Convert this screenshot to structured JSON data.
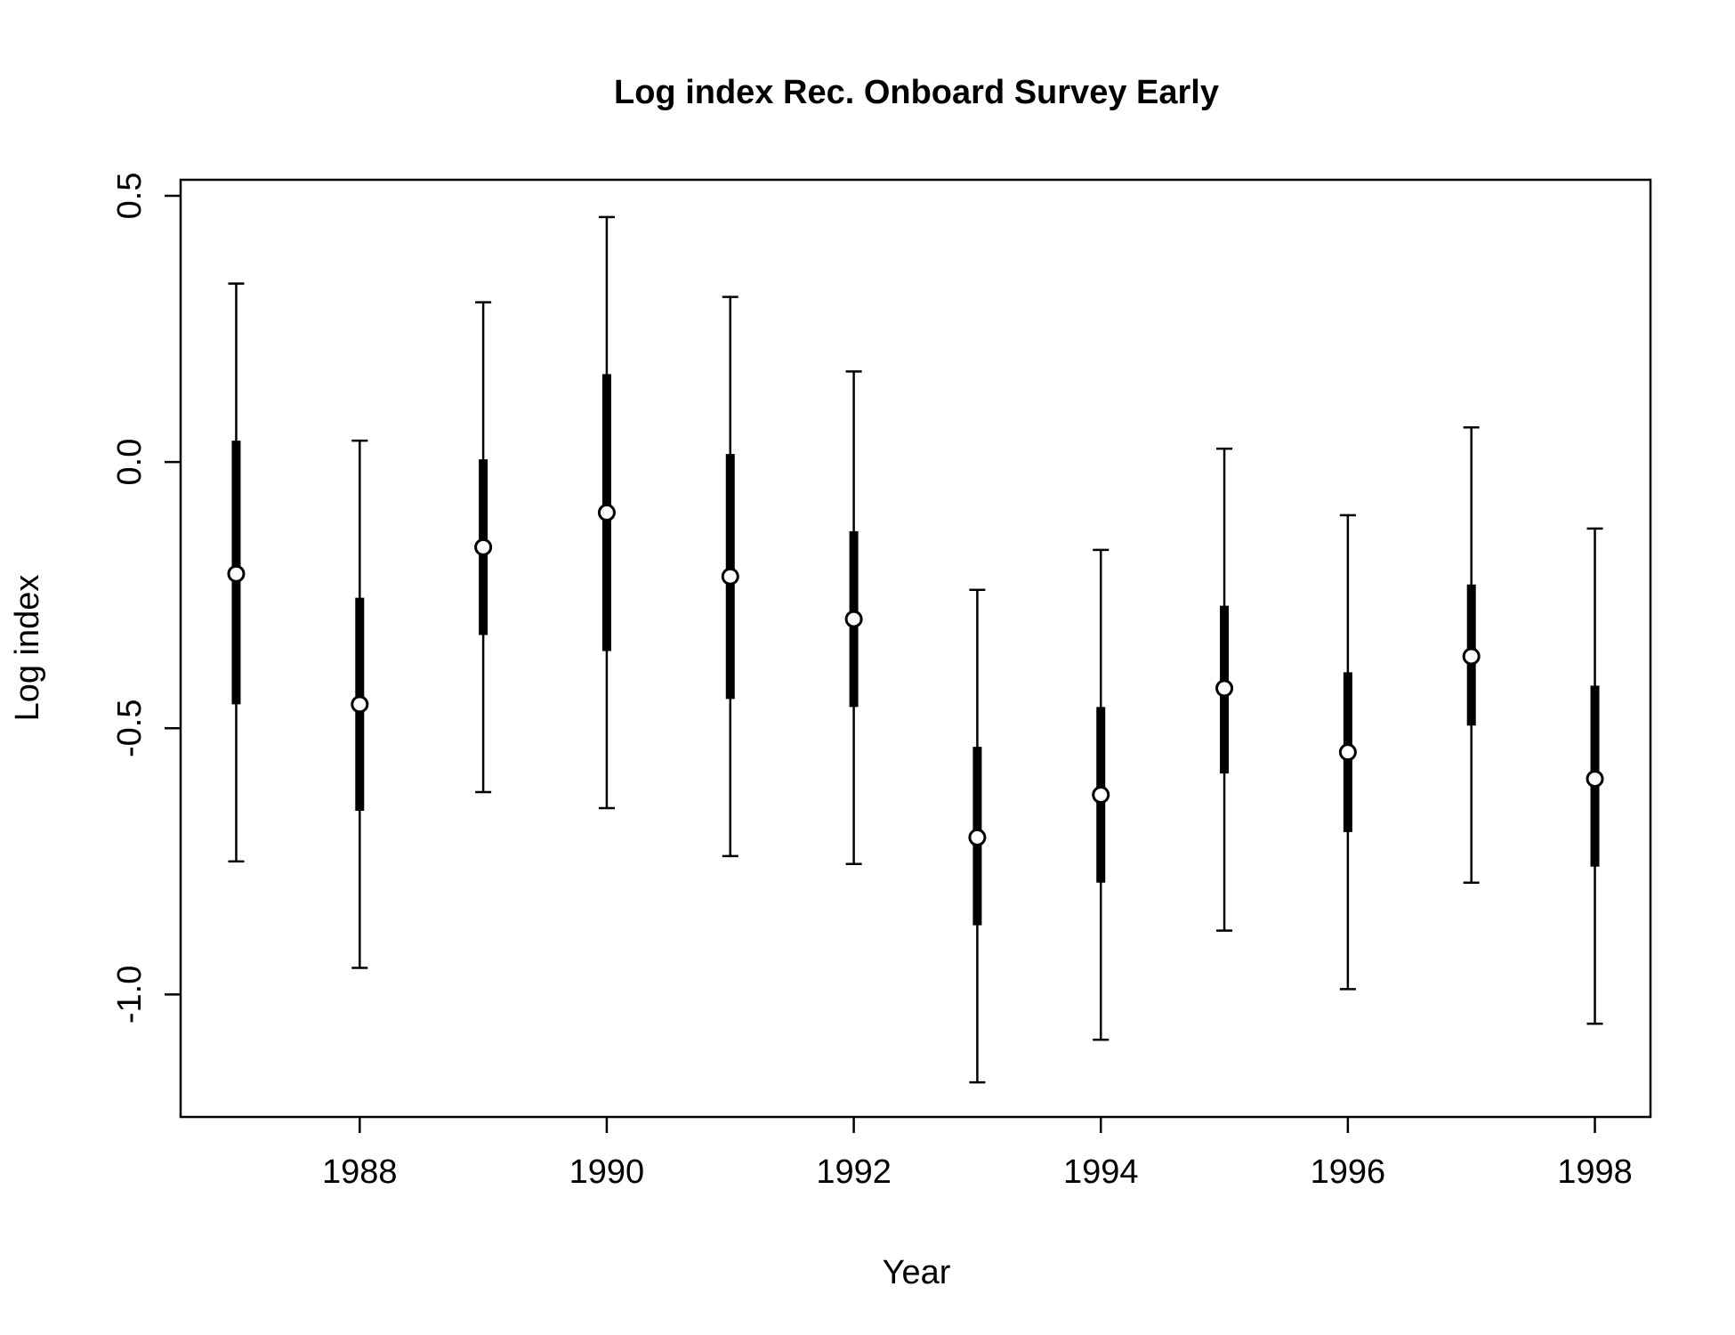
{
  "chart_data": {
    "type": "errorbar",
    "title": "Log index Rec. Onboard Survey Early",
    "xlabel": "Year",
    "ylabel": "Log index",
    "x_ticks": [
      "1988",
      "1990",
      "1992",
      "1994",
      "1996",
      "1998"
    ],
    "y_ticks": [
      "0.5",
      "0.0",
      "-0.5",
      "-1.0"
    ],
    "xlim": [
      1986.55,
      1998.45
    ],
    "ylim": [
      -1.23,
      0.53
    ],
    "grid": false,
    "points": [
      {
        "x": 1987,
        "y": -0.21,
        "lo95": -0.75,
        "hi95": 0.335,
        "lo50": -0.455,
        "hi50": 0.04
      },
      {
        "x": 1988,
        "y": -0.455,
        "lo95": -0.95,
        "hi95": 0.04,
        "lo50": -0.655,
        "hi50": -0.255
      },
      {
        "x": 1989,
        "y": -0.16,
        "lo95": -0.62,
        "hi95": 0.3,
        "lo50": -0.325,
        "hi50": 0.005
      },
      {
        "x": 1990,
        "y": -0.095,
        "lo95": -0.65,
        "hi95": 0.46,
        "lo50": -0.355,
        "hi50": 0.165
      },
      {
        "x": 1991,
        "y": -0.215,
        "lo95": -0.74,
        "hi95": 0.31,
        "lo50": -0.445,
        "hi50": 0.015
      },
      {
        "x": 1992,
        "y": -0.295,
        "lo95": -0.755,
        "hi95": 0.17,
        "lo50": -0.46,
        "hi50": -0.13
      },
      {
        "x": 1993,
        "y": -0.705,
        "lo95": -1.165,
        "hi95": -0.24,
        "lo50": -0.87,
        "hi50": -0.535
      },
      {
        "x": 1994,
        "y": -0.625,
        "lo95": -1.085,
        "hi95": -0.165,
        "lo50": -0.79,
        "hi50": -0.46
      },
      {
        "x": 1995,
        "y": -0.425,
        "lo95": -0.88,
        "hi95": 0.025,
        "lo50": -0.585,
        "hi50": -0.27
      },
      {
        "x": 1996,
        "y": -0.545,
        "lo95": -0.99,
        "hi95": -0.1,
        "lo50": -0.695,
        "hi50": -0.395
      },
      {
        "x": 1997,
        "y": -0.365,
        "lo95": -0.79,
        "hi95": 0.065,
        "lo50": -0.495,
        "hi50": -0.23
      },
      {
        "x": 1998,
        "y": -0.595,
        "lo95": -1.055,
        "hi95": -0.125,
        "lo50": -0.76,
        "hi50": -0.42
      }
    ]
  }
}
